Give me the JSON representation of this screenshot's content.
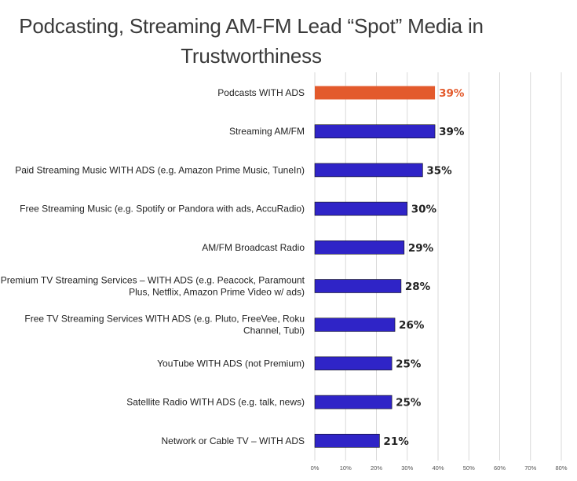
{
  "chart_data": {
    "type": "bar",
    "orientation": "horizontal",
    "title_lines": [
      "Podcasting, Streaming AM-FM Lead “Spot” Media in",
      "Trustworthiness"
    ],
    "categories": [
      [
        "Podcasts WITH ADS"
      ],
      [
        "Streaming AM/FM"
      ],
      [
        "Paid Streaming Music WITH ADS (e.g. Amazon Prime Music, TuneIn)"
      ],
      [
        "Free Streaming Music (e.g. Spotify or Pandora with ads, AccuRadio)"
      ],
      [
        "AM/FM Broadcast Radio"
      ],
      [
        "Premium TV Streaming Services – WITH ADS (e.g. Peacock, Paramount",
        "Plus, Netflix, Amazon Prime Video w/ ads)"
      ],
      [
        "Free TV Streaming Services WITH ADS (e.g. Pluto, FreeVee, Roku",
        "Channel, Tubi)"
      ],
      [
        "YouTube WITH ADS (not Premium)"
      ],
      [
        "Satellite Radio WITH ADS (e.g. talk, news)"
      ],
      [
        "Network or Cable TV – WITH ADS"
      ]
    ],
    "values": [
      39,
      39,
      35,
      30,
      29,
      28,
      26,
      25,
      25,
      21
    ],
    "value_labels": [
      "39%",
      "39%",
      "35%",
      "30%",
      "29%",
      "28%",
      "26%",
      "25%",
      "25%",
      "21%"
    ],
    "highlight_index": 0,
    "colors": {
      "bar": "#2f24c7",
      "highlight": "#e35a2c",
      "text": "#222222",
      "grid": "#d9d9d9"
    },
    "xlim": [
      0,
      80
    ],
    "xticks": [
      0,
      10,
      20,
      30,
      40,
      50,
      60,
      70,
      80
    ],
    "xtick_labels": [
      "0%",
      "10%",
      "20%",
      "30%",
      "40%",
      "50%",
      "60%",
      "70%",
      "80%"
    ],
    "grid": true,
    "legend": "none"
  }
}
